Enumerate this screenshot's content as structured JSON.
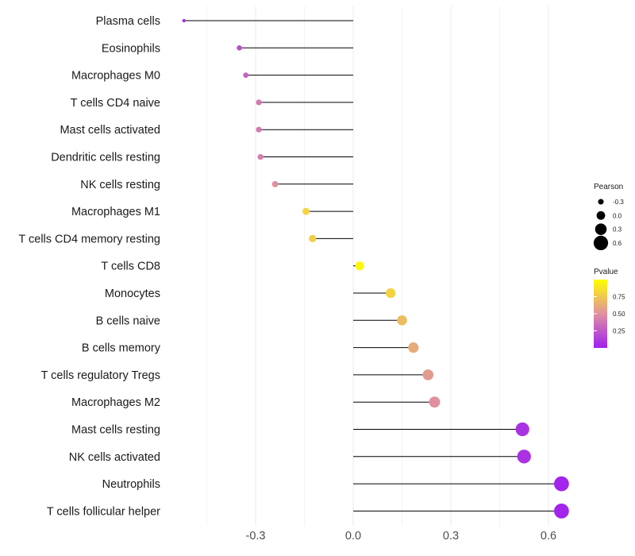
{
  "chart_data": {
    "type": "lollipop",
    "title": "",
    "xlabel": "",
    "ylabel": "",
    "xlim": [
      -0.55,
      0.68
    ],
    "xticks": [
      -0.3,
      0.0,
      0.3,
      0.6
    ],
    "xtick_labels": [
      "-0.3",
      "0.0",
      "0.3",
      "0.6"
    ],
    "categories": [
      "Plasma cells",
      "Eosinophils",
      "Macrophages M0",
      "T cells CD4 naive",
      "Mast cells activated",
      "Dendritic cells resting",
      "NK cells resting",
      "Macrophages M1",
      "T cells CD4 memory resting",
      "T cells CD8",
      "Monocytes",
      "B cells naive",
      "B cells memory",
      "T cells regulatory  Tregs",
      "Macrophages M2",
      "Mast cells resting",
      "NK cells activated",
      "Neutrophils",
      "T cells follicular helper"
    ],
    "pearson": [
      -0.52,
      -0.35,
      -0.33,
      -0.29,
      -0.29,
      -0.285,
      -0.24,
      -0.145,
      -0.125,
      0.02,
      0.115,
      0.15,
      0.185,
      0.23,
      0.25,
      0.52,
      0.525,
      0.64,
      0.64
    ],
    "pvalue": [
      0.05,
      0.2,
      0.3,
      0.4,
      0.4,
      0.42,
      0.5,
      0.8,
      0.78,
      0.97,
      0.8,
      0.7,
      0.62,
      0.55,
      0.5,
      0.08,
      0.08,
      0.02,
      0.02
    ],
    "legend": {
      "size_title": "Pearson",
      "size_values": [
        -0.3,
        0.0,
        0.3,
        0.6
      ],
      "size_labels": [
        "-0.3",
        "0.0",
        "0.3",
        "0.6"
      ],
      "color_title": "Pvalue",
      "color_ticks": [
        0.75,
        0.5,
        0.25
      ],
      "color_tick_labels": [
        "0.75",
        "0.50",
        "0.25"
      ],
      "color_range": [
        0.0,
        1.0
      ],
      "color_low": "#a020f0",
      "color_mid": "#e090a0",
      "color_high": "#ffff00",
      "placement": "right"
    },
    "gridlines": true
  }
}
